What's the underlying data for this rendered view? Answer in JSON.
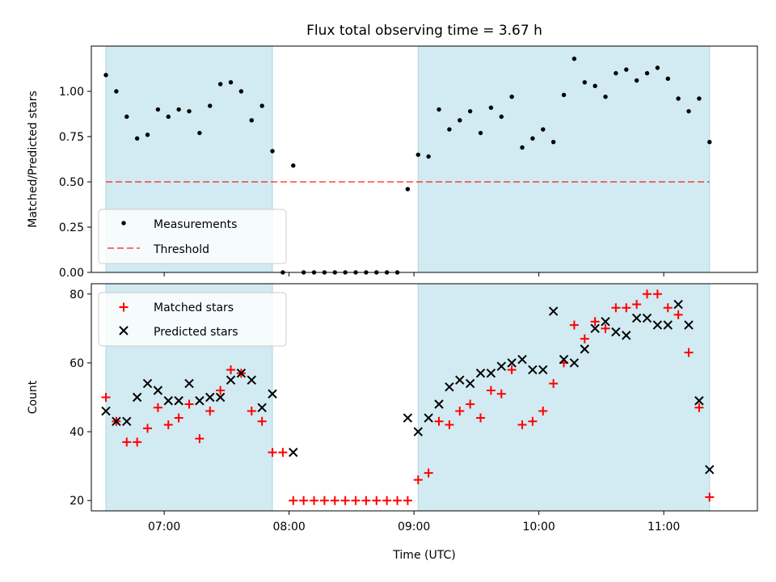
{
  "figure": {
    "title": "Flux total observing time = 3.67 h"
  },
  "colors": {
    "shade": "#add8e6",
    "threshold": "#ff0000",
    "measurement": "#000000",
    "matched": "#ff0000",
    "predicted": "#000000"
  },
  "chart_data": [
    {
      "type": "scatter",
      "panel": "top",
      "title": "Flux total observing time = 3.67 h",
      "xlabel": "",
      "ylabel": "Matched/Predicted stars",
      "xlim": [
        "06:25",
        "11:45"
      ],
      "ylim": [
        0,
        1.25
      ],
      "xticks": [
        "07:00",
        "08:00",
        "09:00",
        "10:00",
        "11:00"
      ],
      "yticks": [
        "0.00",
        "0.25",
        "0.50",
        "0.75",
        "1.00"
      ],
      "shaded_intervals": [
        [
          "06:32",
          "07:52"
        ],
        [
          "09:02",
          "11:22"
        ]
      ],
      "threshold": 0.5,
      "legend": {
        "placement": "lower-left",
        "entries": [
          "Measurements",
          "Threshold"
        ]
      },
      "series": [
        {
          "name": "Measurements",
          "marker": "dot",
          "x": [
            "06:32",
            "06:37",
            "06:42",
            "06:47",
            "06:52",
            "06:57",
            "07:02",
            "07:07",
            "07:12",
            "07:17",
            "07:22",
            "07:27",
            "07:32",
            "07:37",
            "07:42",
            "07:47",
            "07:52",
            "07:57",
            "08:02",
            "08:07",
            "08:12",
            "08:17",
            "08:22",
            "08:27",
            "08:32",
            "08:37",
            "08:42",
            "08:47",
            "08:52",
            "08:57",
            "09:02",
            "09:07",
            "09:12",
            "09:17",
            "09:22",
            "09:27",
            "09:32",
            "09:37",
            "09:42",
            "09:47",
            "09:52",
            "09:57",
            "10:02",
            "10:07",
            "10:12",
            "10:17",
            "10:22",
            "10:27",
            "10:32",
            "10:37",
            "10:42",
            "10:47",
            "10:52",
            "10:57",
            "11:02",
            "11:07",
            "11:12",
            "11:17",
            "11:22"
          ],
          "y": [
            1.09,
            1.0,
            0.86,
            0.74,
            0.76,
            0.9,
            0.86,
            0.9,
            0.89,
            0.77,
            0.92,
            1.04,
            1.05,
            1.0,
            0.84,
            0.92,
            0.67,
            0.0,
            0.59,
            0.0,
            0.0,
            0.0,
            0.0,
            0.0,
            0.0,
            0.0,
            0.0,
            0.0,
            0.0,
            0.46,
            0.65,
            0.64,
            0.9,
            0.79,
            0.84,
            0.89,
            0.77,
            0.91,
            0.86,
            0.97,
            0.69,
            0.74,
            0.79,
            0.72,
            0.98,
            1.18,
            1.05,
            1.03,
            0.97,
            1.1,
            1.12,
            1.06,
            1.1,
            1.13,
            1.07,
            0.96,
            0.89,
            0.96,
            0.72
          ]
        }
      ]
    },
    {
      "type": "scatter",
      "panel": "bottom",
      "xlabel": "Time (UTC)",
      "ylabel": "Count",
      "xlim": [
        "06:25",
        "11:45"
      ],
      "ylim": [
        17,
        83
      ],
      "xticks": [
        "07:00",
        "08:00",
        "09:00",
        "10:00",
        "11:00"
      ],
      "yticks": [
        "20",
        "40",
        "60",
        "80"
      ],
      "shaded_intervals": [
        [
          "06:32",
          "07:52"
        ],
        [
          "09:02",
          "11:22"
        ]
      ],
      "legend": {
        "placement": "upper-left",
        "entries": [
          "Matched stars",
          "Predicted stars"
        ]
      },
      "series": [
        {
          "name": "Matched stars",
          "marker": "plus",
          "x": [
            "06:32",
            "06:37",
            "06:42",
            "06:47",
            "06:52",
            "06:57",
            "07:02",
            "07:07",
            "07:12",
            "07:17",
            "07:22",
            "07:27",
            "07:32",
            "07:37",
            "07:42",
            "07:47",
            "07:52",
            "07:57",
            "08:02",
            "08:07",
            "08:12",
            "08:17",
            "08:22",
            "08:27",
            "08:32",
            "08:37",
            "08:42",
            "08:47",
            "08:52",
            "08:57",
            "09:02",
            "09:07",
            "09:12",
            "09:17",
            "09:22",
            "09:27",
            "09:32",
            "09:37",
            "09:42",
            "09:47",
            "09:52",
            "09:57",
            "10:02",
            "10:07",
            "10:12",
            "10:17",
            "10:22",
            "10:27",
            "10:32",
            "10:37",
            "10:42",
            "10:47",
            "10:52",
            "10:57",
            "11:02",
            "11:07",
            "11:12",
            "11:17",
            "11:22"
          ],
          "y": [
            50,
            43,
            37,
            37,
            41,
            47,
            42,
            44,
            48,
            38,
            46,
            52,
            58,
            57,
            46,
            43,
            34,
            34,
            20,
            20,
            20,
            20,
            20,
            20,
            20,
            20,
            20,
            20,
            20,
            20,
            26,
            28,
            43,
            42,
            46,
            48,
            44,
            52,
            51,
            58,
            42,
            43,
            46,
            54,
            60,
            71,
            67,
            72,
            70,
            76,
            76,
            77,
            80,
            80,
            76,
            74,
            63,
            47,
            21
          ]
        },
        {
          "name": "Predicted stars",
          "marker": "x",
          "x": [
            "06:32",
            "06:37",
            "06:42",
            "06:47",
            "06:52",
            "06:57",
            "07:02",
            "07:07",
            "07:12",
            "07:17",
            "07:22",
            "07:27",
            "07:32",
            "07:37",
            "07:42",
            "07:47",
            "07:52",
            "08:02",
            "08:57",
            "09:02",
            "09:07",
            "09:12",
            "09:17",
            "09:22",
            "09:27",
            "09:32",
            "09:37",
            "09:42",
            "09:47",
            "09:52",
            "09:57",
            "10:02",
            "10:07",
            "10:12",
            "10:17",
            "10:22",
            "10:27",
            "10:32",
            "10:37",
            "10:42",
            "10:47",
            "10:52",
            "10:57",
            "11:02",
            "11:07",
            "11:12",
            "11:17",
            "11:22"
          ],
          "y": [
            46,
            43,
            43,
            50,
            54,
            52,
            49,
            49,
            54,
            49,
            50,
            50,
            55,
            57,
            55,
            47,
            51,
            34,
            44,
            40,
            44,
            48,
            53,
            55,
            54,
            57,
            57,
            59,
            60,
            61,
            58,
            58,
            75,
            61,
            60,
            64,
            70,
            72,
            69,
            68,
            73,
            73,
            71,
            71,
            77,
            71,
            49,
            29
          ]
        }
      ]
    }
  ]
}
